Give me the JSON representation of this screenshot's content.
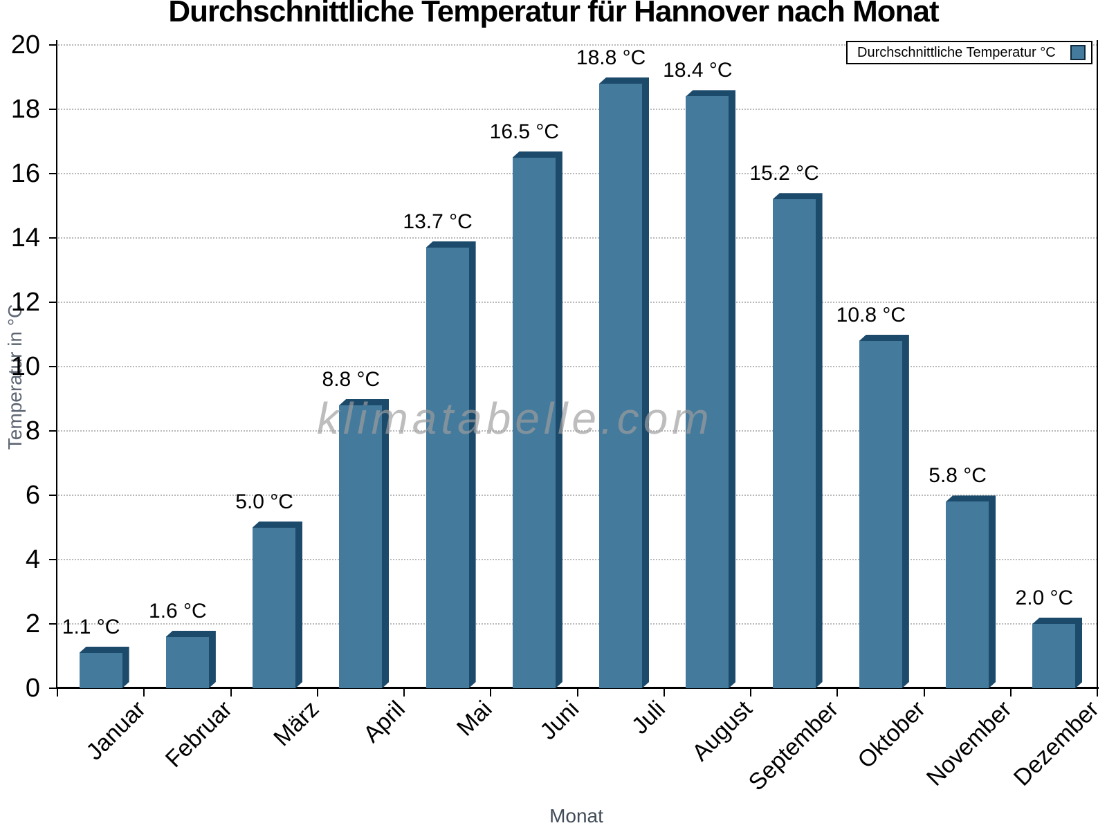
{
  "title": "Durchschnittliche Temperatur für Hannover nach Monat",
  "legend": {
    "label": "Durchschnittliche Temperatur °C",
    "position": "top-right"
  },
  "watermark": "klimatabelle.com",
  "axes": {
    "x_title": "Monat",
    "y_title": "Temperatur in °C",
    "y_ticks": [
      0,
      2,
      4,
      6,
      8,
      10,
      12,
      14,
      16,
      18,
      20
    ]
  },
  "colors": {
    "bar_face": "#447a9c",
    "bar_shade": "#1c4a6b",
    "gridline": "#b9b9b9",
    "axis": "#000000",
    "y_title_text": "#5d6673",
    "x_title_text": "#414b58",
    "watermark_text": "rgba(158,158,158,0.68)"
  },
  "chart_data": {
    "type": "bar",
    "title": "Durchschnittliche Temperatur für Hannover nach Monat",
    "series_label": "Durchschnittliche Temperatur °C",
    "categories": [
      "Januar",
      "Februar",
      "März",
      "April",
      "Mai",
      "Juni",
      "Juli",
      "August",
      "September",
      "Oktober",
      "November",
      "Dezember"
    ],
    "values": [
      1.1,
      1.6,
      5.0,
      8.8,
      13.7,
      16.5,
      18.8,
      18.4,
      15.2,
      10.8,
      5.8,
      2.0
    ],
    "value_labels": [
      "1.1 °C",
      "1.6 °C",
      "5.0 °C",
      "8.8 °C",
      "13.7 °C",
      "16.5 °C",
      "18.8 °C",
      "18.4 °C",
      "15.2 °C",
      "10.8 °C",
      "5.8 °C",
      "2.0 °C"
    ],
    "unit": "°C",
    "xlabel": "Monat",
    "ylabel": "Temperatur in °C",
    "ylim": [
      0,
      20
    ],
    "y_tick_step": 2,
    "grid": "horizontal-dotted",
    "legend_position": "top-right",
    "bar_style": "3d-extruded"
  }
}
